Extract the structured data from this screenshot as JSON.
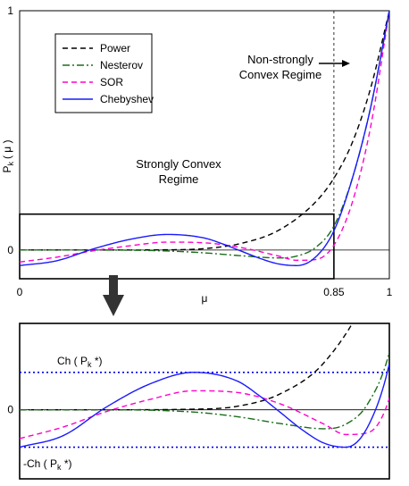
{
  "chart_data": [
    {
      "type": "line",
      "ylabel_main": "P",
      "ylabel_sub": "k",
      "ylabel_paren": "( μ )",
      "xlabel": "μ",
      "xlim": [
        0,
        1
      ],
      "ylim": [
        -0.12,
        1
      ],
      "xticks": [
        {
          "value": 0,
          "label": "0"
        },
        {
          "value": 0.85,
          "label": "0.85"
        },
        {
          "value": 1,
          "label": "1"
        }
      ],
      "yticks": [
        {
          "value": 0,
          "label": "0"
        },
        {
          "value": 1,
          "label": "1"
        }
      ],
      "vline": 0.85,
      "zoom_box": {
        "x": [
          0,
          0.85
        ],
        "y": [
          -0.12,
          0.15
        ]
      },
      "annotations": {
        "strong_line1": "Strongly Convex",
        "strong_line2": "Regime",
        "nonstrong_line1": "Non-strongly",
        "nonstrong_line2": "Convex Regime"
      },
      "legend_position": "top-left",
      "series": [
        {
          "name": "Power",
          "color": "#000000",
          "dash": "dashed",
          "x": [
            0,
            0.2,
            0.4,
            0.5,
            0.6,
            0.7,
            0.8,
            0.85,
            0.9,
            0.95,
            1
          ],
          "y": [
            0,
            0,
            0.001,
            0.006,
            0.028,
            0.082,
            0.2,
            0.3,
            0.45,
            0.68,
            1
          ]
        },
        {
          "name": "Nesterov",
          "color": "#1a6e1a",
          "dash": "dashdot",
          "x": [
            0,
            0.2,
            0.4,
            0.5,
            0.6,
            0.7,
            0.75,
            0.8,
            0.85,
            0.9,
            0.95,
            1
          ],
          "y": [
            0,
            0,
            -0.004,
            -0.012,
            -0.024,
            -0.033,
            -0.025,
            0.01,
            0.1,
            0.3,
            0.6,
            1
          ]
        },
        {
          "name": "SOR",
          "color": "#ff00cc",
          "dash": "dashed",
          "x": [
            0,
            0.1,
            0.2,
            0.3,
            0.4,
            0.5,
            0.6,
            0.7,
            0.75,
            0.8,
            0.85,
            0.9,
            0.95,
            1
          ],
          "y": [
            -0.05,
            -0.03,
            -0.003,
            0.018,
            0.033,
            0.03,
            0.01,
            -0.025,
            -0.043,
            -0.04,
            0.02,
            0.2,
            0.52,
            1
          ]
        },
        {
          "name": "Chebyshev",
          "color": "#1a1aff",
          "dash": "solid",
          "x": [
            0,
            0.1,
            0.2,
            0.3,
            0.4,
            0.5,
            0.55,
            0.6,
            0.65,
            0.7,
            0.75,
            0.8,
            0.85,
            0.9,
            0.95,
            1
          ],
          "y": [
            -0.065,
            -0.045,
            0.005,
            0.045,
            0.065,
            0.05,
            0.025,
            -0.005,
            -0.035,
            -0.058,
            -0.065,
            -0.03,
            0.08,
            0.3,
            0.6,
            1
          ]
        }
      ]
    },
    {
      "type": "line",
      "xlim": [
        0,
        0.85
      ],
      "ylim": [
        -0.12,
        0.15
      ],
      "yticks": [
        {
          "value": 0,
          "label": "0"
        }
      ],
      "hlines": [
        0.065,
        -0.065
      ],
      "hline_color": "#0000ee",
      "annotations": {
        "upper_prefix": "Ch ( P",
        "upper_sub": "k",
        "upper_suffix": " *)",
        "lower_prefix": "-Ch ( P",
        "lower_sub": "k",
        "lower_suffix": " *)"
      }
    }
  ]
}
